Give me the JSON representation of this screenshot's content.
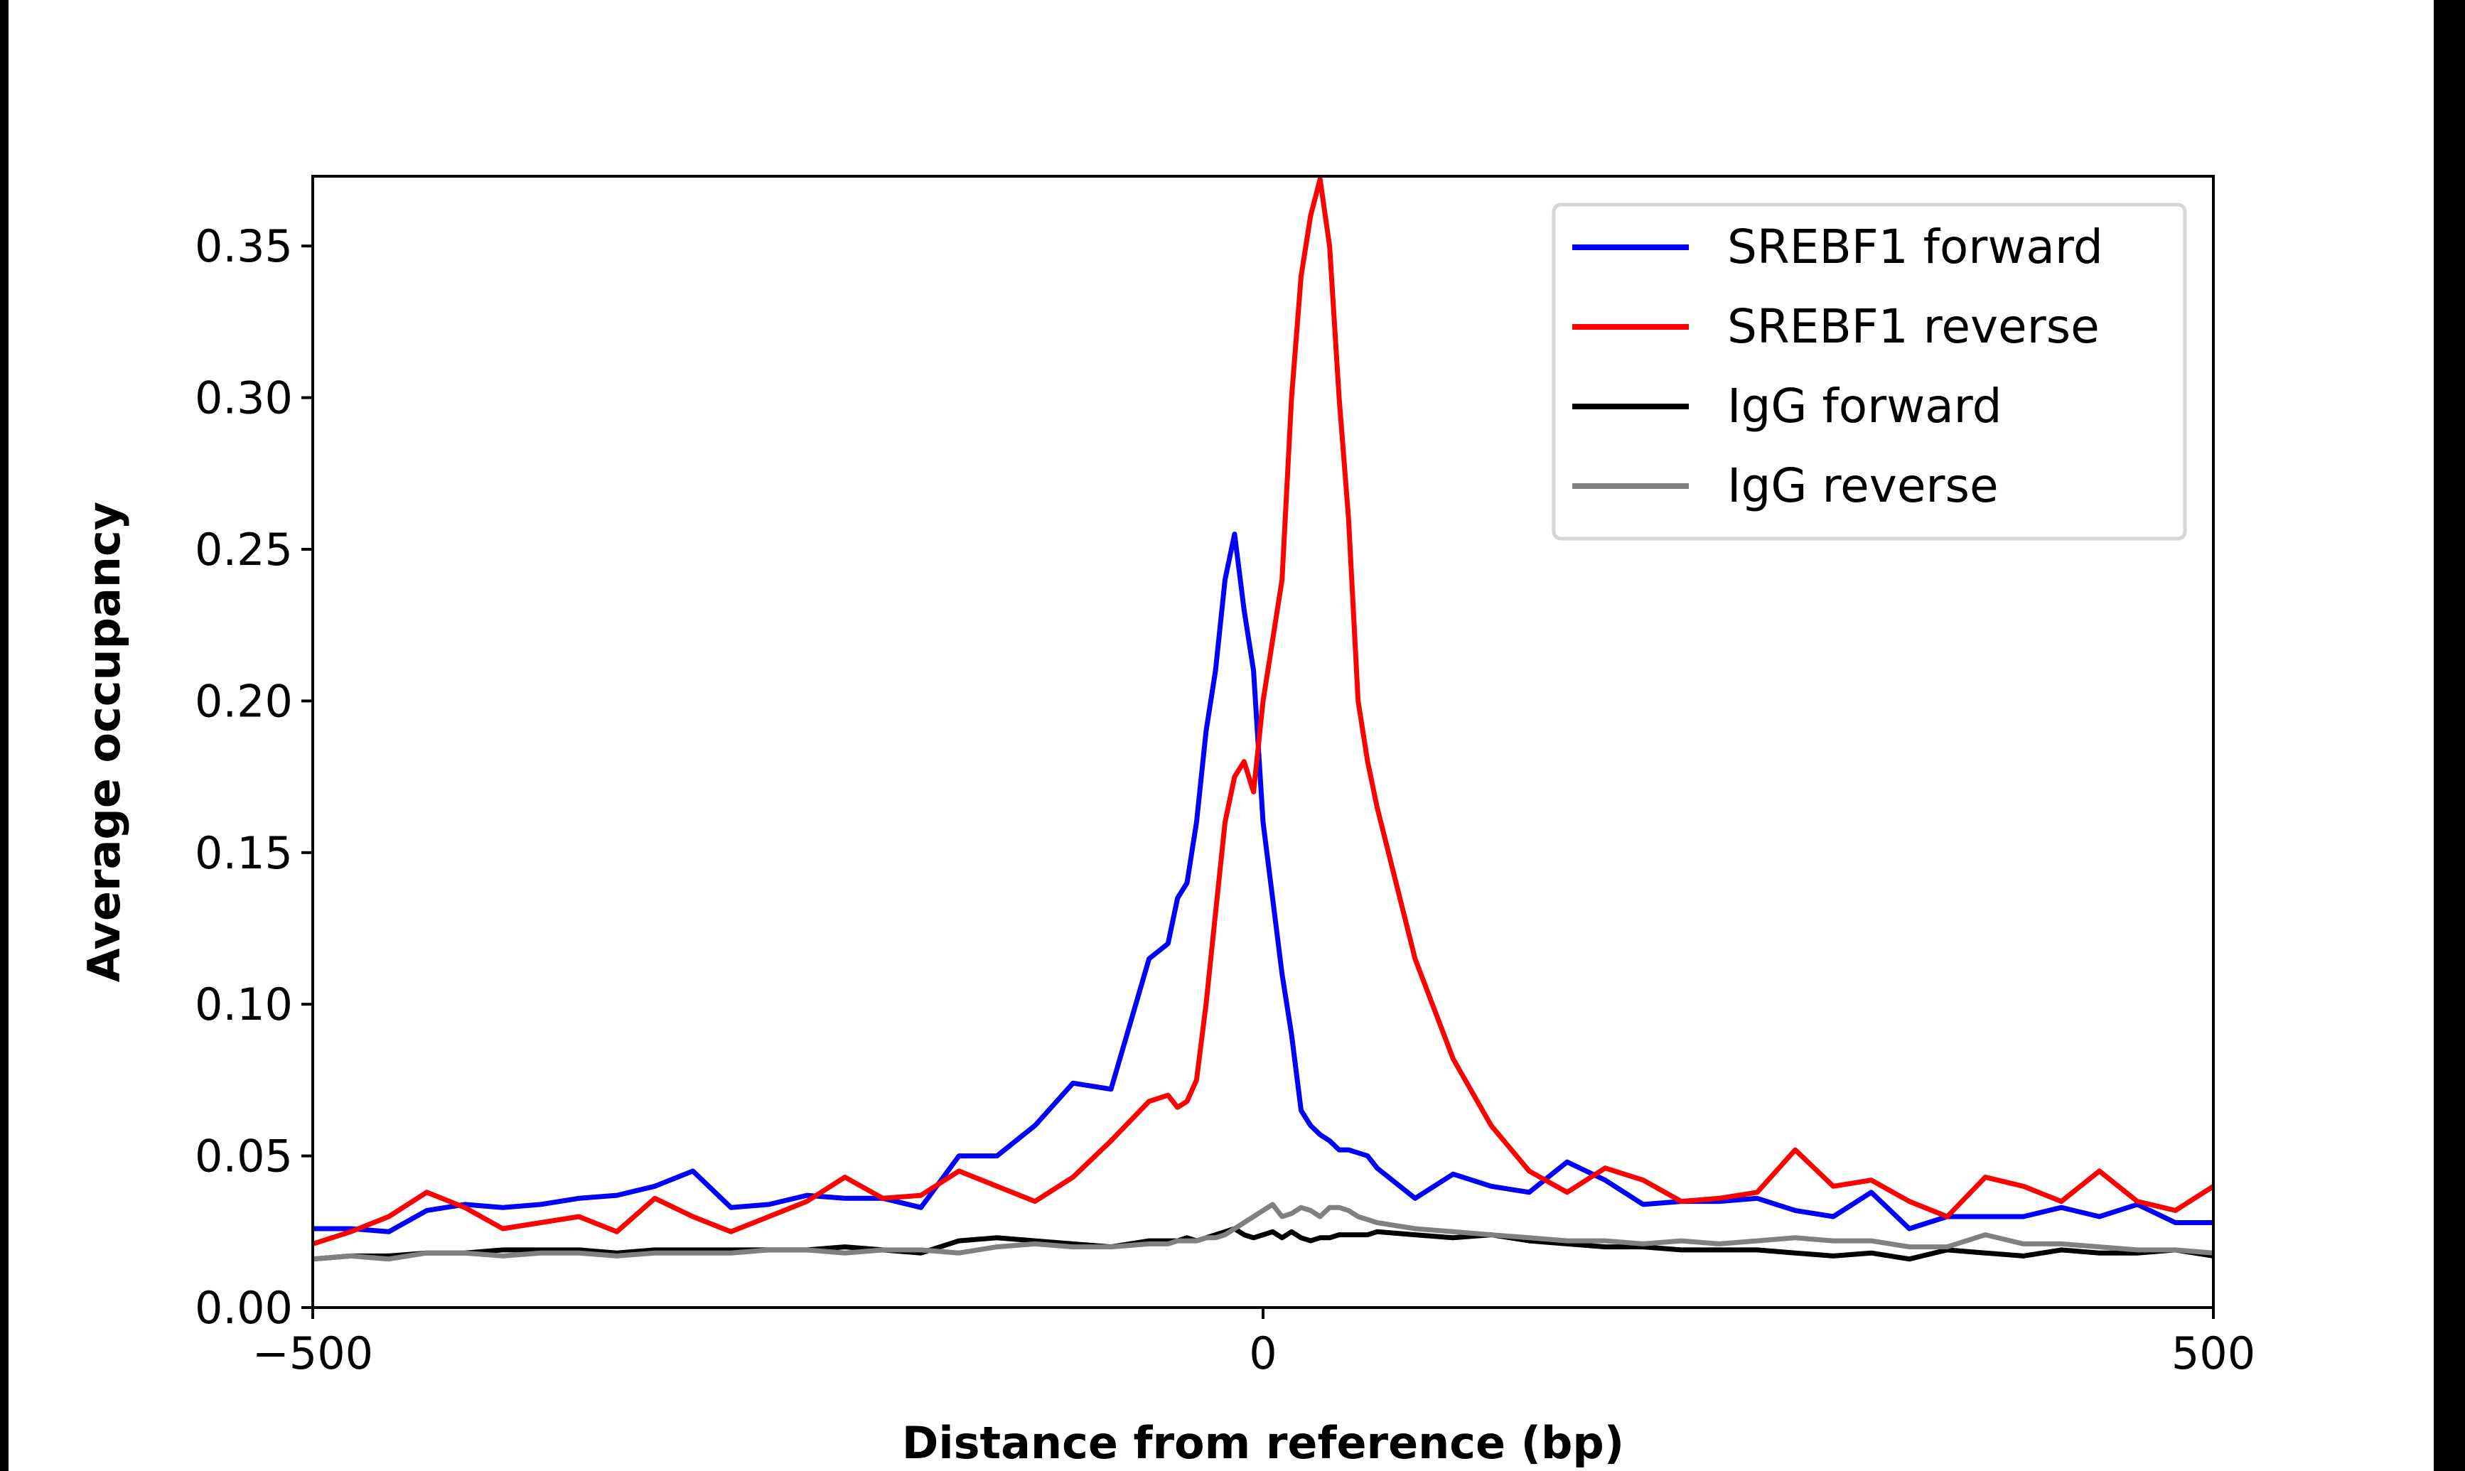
{
  "chart_data": {
    "type": "line",
    "title": "",
    "xlabel": "Distance from reference (bp)",
    "ylabel": "Average occupancy",
    "xlim": [
      -500,
      500
    ],
    "ylim": [
      0,
      0.373
    ],
    "xticks": [
      -500,
      0,
      500
    ],
    "xtick_labels": [
      "−500",
      "0",
      "500"
    ],
    "yticks": [
      0,
      0.05,
      0.1,
      0.15,
      0.2,
      0.25,
      0.3,
      0.35
    ],
    "ytick_labels": [
      "0.00",
      "0.05",
      "0.10",
      "0.15",
      "0.20",
      "0.25",
      "0.30",
      "0.35"
    ],
    "grid": false,
    "legend_position": "top-right",
    "x": [
      -500,
      -480,
      -460,
      -440,
      -420,
      -400,
      -380,
      -360,
      -340,
      -320,
      -300,
      -280,
      -260,
      -240,
      -220,
      -200,
      -180,
      -160,
      -140,
      -120,
      -100,
      -80,
      -60,
      -50,
      -45,
      -40,
      -35,
      -30,
      -25,
      -20,
      -15,
      -10,
      -5,
      0,
      5,
      10,
      15,
      20,
      25,
      30,
      35,
      40,
      45,
      50,
      55,
      60,
      80,
      100,
      120,
      140,
      160,
      180,
      200,
      220,
      240,
      260,
      280,
      300,
      320,
      340,
      360,
      380,
      400,
      420,
      440,
      460,
      480,
      500
    ],
    "series": [
      {
        "name": "SREBF1 forward",
        "color": "#0000ff",
        "values": [
          0.026,
          0.026,
          0.025,
          0.032,
          0.034,
          0.033,
          0.034,
          0.036,
          0.037,
          0.04,
          0.045,
          0.033,
          0.034,
          0.037,
          0.036,
          0.036,
          0.033,
          0.05,
          0.05,
          0.06,
          0.074,
          0.072,
          0.115,
          0.12,
          0.135,
          0.14,
          0.16,
          0.19,
          0.21,
          0.24,
          0.255,
          0.23,
          0.21,
          0.16,
          0.135,
          0.11,
          0.09,
          0.065,
          0.06,
          0.057,
          0.055,
          0.052,
          0.052,
          0.051,
          0.05,
          0.046,
          0.036,
          0.044,
          0.04,
          0.038,
          0.048,
          0.042,
          0.034,
          0.035,
          0.035,
          0.036,
          0.032,
          0.03,
          0.038,
          0.026,
          0.03,
          0.03,
          0.03,
          0.033,
          0.03,
          0.034,
          0.028,
          0.028
        ]
      },
      {
        "name": "SREBF1 reverse",
        "color": "#ff0000",
        "values": [
          0.021,
          0.025,
          0.03,
          0.038,
          0.033,
          0.026,
          0.028,
          0.03,
          0.025,
          0.036,
          0.03,
          0.025,
          0.03,
          0.035,
          0.043,
          0.036,
          0.037,
          0.045,
          0.04,
          0.035,
          0.043,
          0.055,
          0.068,
          0.07,
          0.066,
          0.068,
          0.075,
          0.1,
          0.13,
          0.16,
          0.175,
          0.18,
          0.17,
          0.2,
          0.22,
          0.24,
          0.3,
          0.34,
          0.36,
          0.372,
          0.35,
          0.3,
          0.26,
          0.2,
          0.18,
          0.165,
          0.115,
          0.082,
          0.06,
          0.045,
          0.038,
          0.046,
          0.042,
          0.035,
          0.036,
          0.038,
          0.052,
          0.04,
          0.042,
          0.035,
          0.03,
          0.043,
          0.04,
          0.035,
          0.045,
          0.035,
          0.032,
          0.04
        ]
      },
      {
        "name": "IgG forward",
        "color": "#000000",
        "values": [
          0.016,
          0.017,
          0.017,
          0.018,
          0.018,
          0.019,
          0.019,
          0.019,
          0.018,
          0.019,
          0.019,
          0.019,
          0.019,
          0.019,
          0.02,
          0.019,
          0.018,
          0.022,
          0.023,
          0.022,
          0.021,
          0.02,
          0.022,
          0.022,
          0.022,
          0.023,
          0.022,
          0.023,
          0.024,
          0.025,
          0.026,
          0.024,
          0.023,
          0.024,
          0.025,
          0.023,
          0.025,
          0.023,
          0.022,
          0.023,
          0.023,
          0.024,
          0.024,
          0.024,
          0.024,
          0.025,
          0.024,
          0.023,
          0.024,
          0.022,
          0.021,
          0.02,
          0.02,
          0.019,
          0.019,
          0.019,
          0.018,
          0.017,
          0.018,
          0.016,
          0.019,
          0.018,
          0.017,
          0.019,
          0.018,
          0.018,
          0.019,
          0.017
        ]
      },
      {
        "name": "IgG reverse",
        "color": "#808080",
        "values": [
          0.016,
          0.017,
          0.016,
          0.018,
          0.018,
          0.017,
          0.018,
          0.018,
          0.017,
          0.018,
          0.018,
          0.018,
          0.019,
          0.019,
          0.018,
          0.019,
          0.019,
          0.018,
          0.02,
          0.021,
          0.02,
          0.02,
          0.021,
          0.021,
          0.022,
          0.022,
          0.022,
          0.023,
          0.023,
          0.024,
          0.026,
          0.028,
          0.03,
          0.032,
          0.034,
          0.03,
          0.031,
          0.033,
          0.032,
          0.03,
          0.033,
          0.033,
          0.032,
          0.03,
          0.029,
          0.028,
          0.026,
          0.025,
          0.024,
          0.023,
          0.022,
          0.022,
          0.021,
          0.022,
          0.021,
          0.022,
          0.023,
          0.022,
          0.022,
          0.02,
          0.02,
          0.024,
          0.021,
          0.021,
          0.02,
          0.019,
          0.019,
          0.018
        ]
      }
    ]
  }
}
